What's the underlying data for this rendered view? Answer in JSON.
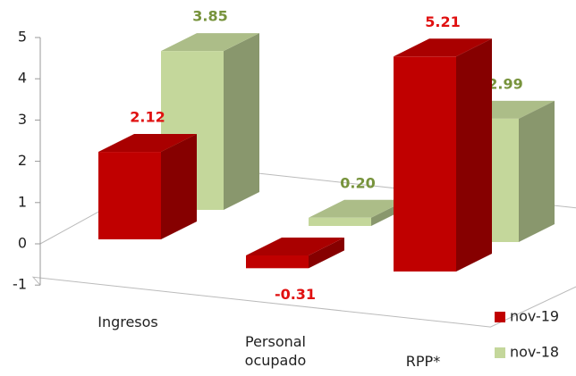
{
  "chart_data": {
    "type": "bar3d",
    "categories": [
      "Ingresos",
      "Personal ocupado",
      "RPP*"
    ],
    "series": [
      {
        "name": "nov-19",
        "color": "#c00000",
        "label_color": "#e01010",
        "values": [
          2.12,
          -0.31,
          5.21
        ],
        "value_labels": [
          "2.12",
          "-0.31",
          "5.21"
        ]
      },
      {
        "name": "nov-18",
        "color": "#c4d79b",
        "label_color": "#77933c",
        "values": [
          3.85,
          0.2,
          2.99
        ],
        "value_labels": [
          "3.85",
          "0.20",
          "2.99"
        ]
      }
    ],
    "ylim": [
      -1,
      5
    ],
    "yticks": [
      -1,
      0,
      1,
      2,
      3,
      4,
      5
    ],
    "legend": "bottom-right"
  }
}
